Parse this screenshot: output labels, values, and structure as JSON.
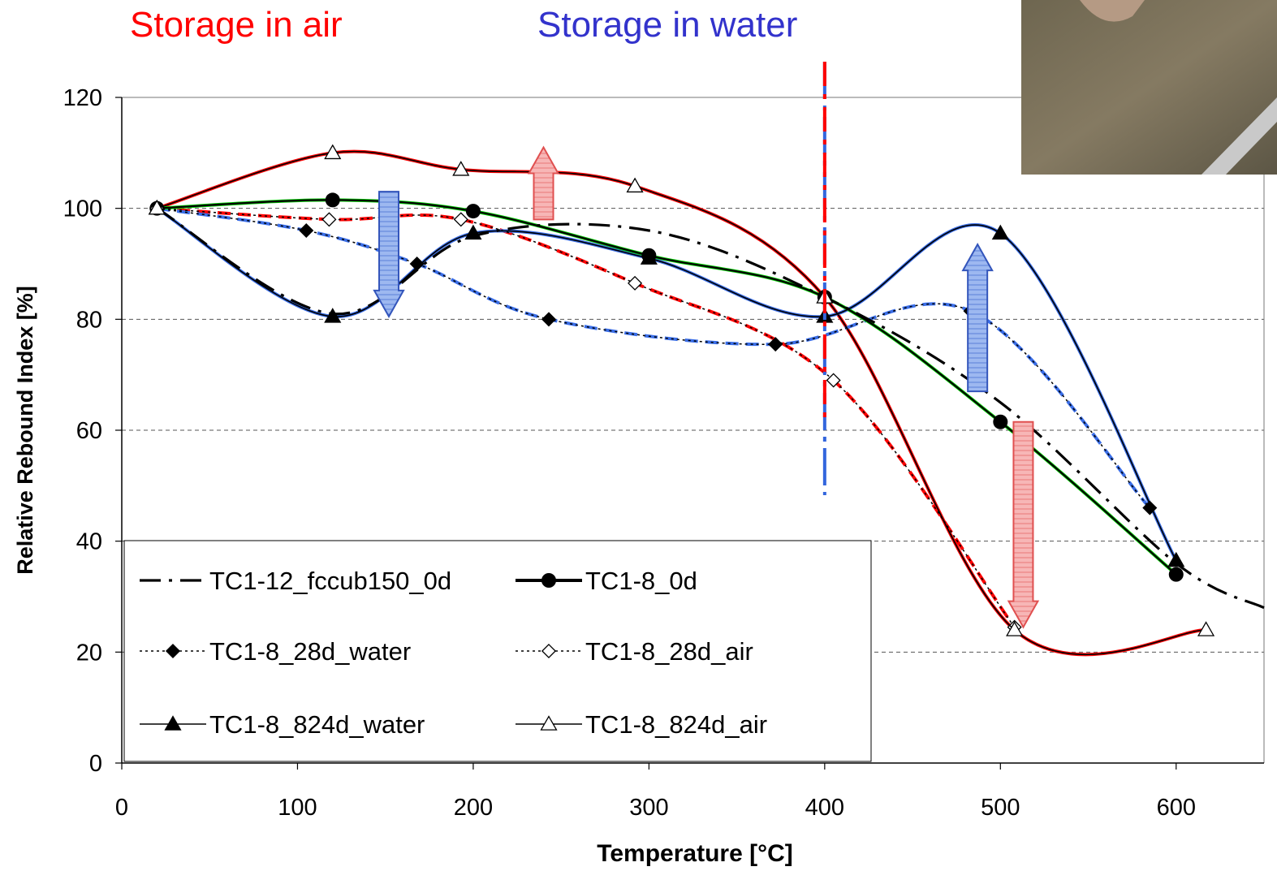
{
  "headers": {
    "air": "Storage in air",
    "water": "Storage in water"
  },
  "colors": {
    "air": "#ff0000",
    "water": "#3333cc",
    "blue_fit": "#3a6ee8",
    "green_fit": "#00cc00",
    "vline": "#ff0000"
  },
  "chart_data": {
    "type": "line",
    "xlabel": "Temperature [°C]",
    "ylabel": "Relative Rebound Index [%]",
    "xlim": [
      0,
      650
    ],
    "ylim": [
      0,
      120
    ],
    "xticks": [
      0,
      100,
      200,
      300,
      400,
      500,
      600
    ],
    "yticks": [
      0,
      20,
      40,
      60,
      80,
      100,
      120
    ],
    "grid": "horizontal dashed",
    "legend_position": "bottom-left",
    "vertical_line_x": 400,
    "series": [
      {
        "name": "TC1-12_fccub150_0d",
        "marker": "none",
        "x": [
          20,
          120,
          200,
          300,
          400,
          500,
          600,
          650
        ],
        "y": [
          100,
          81,
          95,
          96,
          84,
          65,
          36,
          28
        ]
      },
      {
        "name": "TC1-8_0d",
        "marker": "filled-circle",
        "x": [
          20,
          120,
          200,
          300,
          400,
          500,
          600
        ],
        "y": [
          100,
          101.5,
          99.5,
          91.5,
          84,
          61.5,
          34
        ]
      },
      {
        "name": "TC1-8_28d_water",
        "marker": "filled-diamond",
        "x": [
          20,
          105,
          168,
          243,
          372,
          483,
          585
        ],
        "y": [
          100,
          96,
          90,
          80,
          75.5,
          81.5,
          46
        ]
      },
      {
        "name": "TC1-8_28d_air",
        "marker": "open-diamond",
        "x": [
          20,
          118,
          193,
          292,
          405,
          508
        ],
        "y": [
          100,
          98,
          98,
          86.5,
          69,
          24.5
        ]
      },
      {
        "name": "TC1-8_824d_water",
        "marker": "filled-triangle",
        "x": [
          20,
          120,
          200,
          300,
          400,
          500,
          600
        ],
        "y": [
          100,
          80.5,
          95.5,
          91,
          80.5,
          95.5,
          36.5
        ]
      },
      {
        "name": "TC1-8_824d_air",
        "marker": "open-triangle",
        "x": [
          20,
          120,
          193,
          292,
          400,
          508,
          617
        ],
        "y": [
          100,
          110,
          107,
          104,
          84,
          24,
          24
        ]
      }
    ],
    "legend": [
      "TC1-12_fccub150_0d",
      "TC1-8_0d",
      "TC1-8_28d_water",
      "TC1-8_28d_air",
      "TC1-8_824d_water",
      "TC1-8_824d_air"
    ]
  }
}
